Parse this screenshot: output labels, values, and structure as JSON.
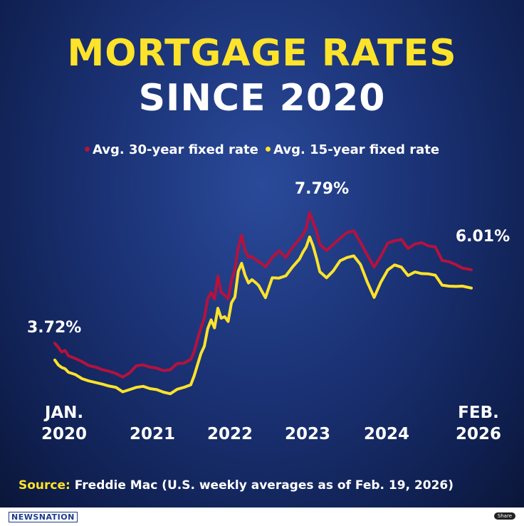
{
  "title_line1": "MORTGAGE RATES",
  "title_line2": "SINCE 2020",
  "legend": {
    "series1_label": "Avg. 30-year fixed rate",
    "series2_label": "Avg. 15-year fixed rate"
  },
  "colors": {
    "series1": "#b5123e",
    "series2": "#ffe32a",
    "title_accent": "#ffe32a"
  },
  "chart_data": {
    "type": "line",
    "ylim": [
      2.0,
      8.6
    ],
    "xlim": [
      2020.0,
      2026.15
    ],
    "series": [
      {
        "name": "Avg. 30-year fixed rate",
        "color": "#b5123e",
        "x": [
          2020.0,
          2020.05,
          2020.1,
          2020.15,
          2020.2,
          2020.3,
          2020.4,
          2020.5,
          2020.6,
          2020.7,
          2020.8,
          2020.9,
          2021.0,
          2021.1,
          2021.2,
          2021.3,
          2021.4,
          2021.5,
          2021.6,
          2021.7,
          2021.8,
          2021.9,
          2022.0,
          2022.05,
          2022.1,
          2022.15,
          2022.2,
          2022.25,
          2022.3,
          2022.35,
          2022.4,
          2022.45,
          2022.5,
          2022.55,
          2022.6,
          2022.65,
          2022.7,
          2022.75,
          2022.8,
          2022.85,
          2022.9,
          2022.95,
          2023.0,
          2023.1,
          2023.2,
          2023.3,
          2023.4,
          2023.5,
          2023.6,
          2023.65,
          2023.7,
          2023.75,
          2023.8,
          2023.85,
          2023.9,
          2024.0,
          2024.1,
          2024.2,
          2024.3,
          2024.4,
          2024.5,
          2024.6,
          2024.7,
          2024.8,
          2024.9,
          2025.0,
          2025.1,
          2025.2,
          2025.3,
          2025.4,
          2025.5,
          2025.6,
          2025.7,
          2025.8,
          2025.9,
          2026.0,
          2026.13
        ],
        "values": [
          3.72,
          3.6,
          3.45,
          3.5,
          3.33,
          3.25,
          3.15,
          3.03,
          2.98,
          2.9,
          2.85,
          2.78,
          2.67,
          2.8,
          3.02,
          3.05,
          2.98,
          2.95,
          2.87,
          2.9,
          3.09,
          3.1,
          3.22,
          3.45,
          3.85,
          4.2,
          4.5,
          5.1,
          5.3,
          5.1,
          5.81,
          5.3,
          5.22,
          5.1,
          5.66,
          6.02,
          6.7,
          7.08,
          6.61,
          6.4,
          6.42,
          6.33,
          6.27,
          6.1,
          6.39,
          6.6,
          6.39,
          6.71,
          6.96,
          7.09,
          7.31,
          7.79,
          7.5,
          7.22,
          6.8,
          6.61,
          6.8,
          6.99,
          7.17,
          7.22,
          6.86,
          6.46,
          6.09,
          6.44,
          6.84,
          6.91,
          6.95,
          6.67,
          6.81,
          6.85,
          6.75,
          6.72,
          6.3,
          6.26,
          6.17,
          6.06,
          6.01
        ]
      },
      {
        "name": "Avg. 15-year fixed rate",
        "color": "#ffe32a",
        "x": [
          2020.0,
          2020.05,
          2020.1,
          2020.15,
          2020.2,
          2020.3,
          2020.4,
          2020.5,
          2020.6,
          2020.7,
          2020.8,
          2020.9,
          2021.0,
          2021.1,
          2021.2,
          2021.3,
          2021.4,
          2021.5,
          2021.6,
          2021.7,
          2021.8,
          2021.9,
          2022.0,
          2022.05,
          2022.1,
          2022.15,
          2022.2,
          2022.25,
          2022.3,
          2022.35,
          2022.4,
          2022.45,
          2022.5,
          2022.55,
          2022.6,
          2022.65,
          2022.7,
          2022.75,
          2022.8,
          2022.85,
          2022.9,
          2022.95,
          2023.0,
          2023.1,
          2023.2,
          2023.3,
          2023.4,
          2023.5,
          2023.6,
          2023.65,
          2023.7,
          2023.75,
          2023.8,
          2023.85,
          2023.9,
          2024.0,
          2024.1,
          2024.2,
          2024.3,
          2024.4,
          2024.5,
          2024.6,
          2024.7,
          2024.8,
          2024.9,
          2025.0,
          2025.1,
          2025.2,
          2025.3,
          2025.4,
          2025.5,
          2025.6,
          2025.7,
          2025.8,
          2025.9,
          2026.0,
          2026.13
        ],
        "values": [
          3.2,
          3.05,
          2.97,
          2.93,
          2.82,
          2.75,
          2.62,
          2.55,
          2.5,
          2.45,
          2.39,
          2.35,
          2.21,
          2.28,
          2.35,
          2.38,
          2.31,
          2.28,
          2.2,
          2.15,
          2.29,
          2.35,
          2.43,
          2.7,
          3.05,
          3.4,
          3.63,
          4.17,
          4.45,
          4.2,
          4.81,
          4.5,
          4.55,
          4.4,
          4.98,
          5.16,
          5.96,
          6.21,
          5.84,
          5.6,
          5.7,
          5.62,
          5.52,
          5.14,
          5.76,
          5.75,
          5.82,
          6.1,
          6.34,
          6.55,
          6.72,
          7.03,
          6.76,
          6.38,
          5.95,
          5.76,
          5.98,
          6.29,
          6.39,
          6.44,
          6.17,
          5.62,
          5.15,
          5.63,
          6.0,
          6.16,
          6.09,
          5.83,
          5.94,
          5.89,
          5.88,
          5.84,
          5.53,
          5.5,
          5.49,
          5.5,
          5.44
        ]
      }
    ],
    "annotations": [
      "3.72%",
      "7.79%",
      "6.01%"
    ],
    "x_tick_labels": [
      {
        "line1": "JAN.",
        "line2": "2020"
      },
      {
        "line1": "",
        "line2": "2021"
      },
      {
        "line1": "",
        "line2": "2022"
      },
      {
        "line1": "",
        "line2": "2023"
      },
      {
        "line1": "",
        "line2": "2024"
      },
      {
        "line1": "FEB.",
        "line2": "2026"
      }
    ]
  },
  "source": {
    "label": "Source:",
    "text": "Freddie Mac (U.S. weekly averages as of Feb. 19, 2026)"
  },
  "footer": {
    "logo": "NEWSNATION",
    "share": "Share"
  }
}
